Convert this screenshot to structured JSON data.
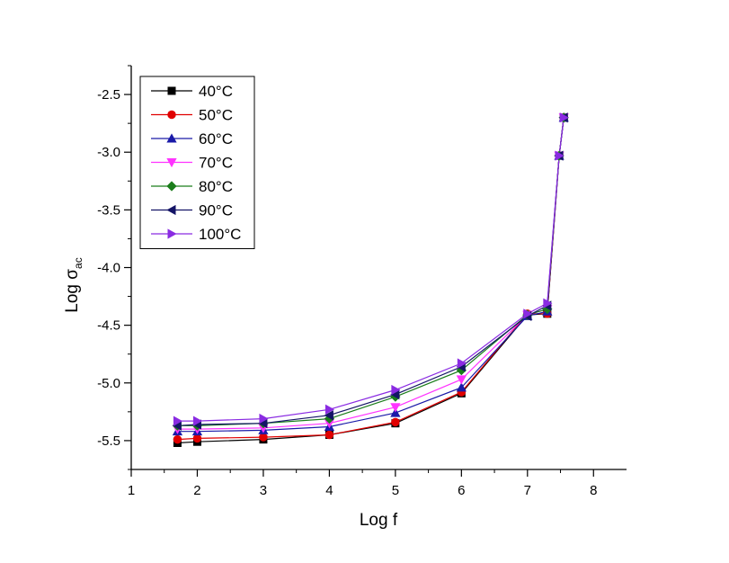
{
  "chart_data": {
    "type": "line",
    "xlabel": "Log f",
    "ylabel_main": "Log σ",
    "ylabel_sub": "ac",
    "xlim": [
      1,
      8.5
    ],
    "ylim": [
      -5.75,
      -2.25
    ],
    "x_ticks": [
      1,
      2,
      3,
      4,
      5,
      6,
      7,
      8
    ],
    "x_tick_labels": [
      "1",
      "2",
      "3",
      "4",
      "5",
      "6",
      "7",
      "8"
    ],
    "y_ticks": [
      -5.5,
      -5.0,
      -4.5,
      -4.0,
      -3.5,
      -3.0,
      -2.5
    ],
    "y_tick_labels": [
      "-5.5",
      "-5.0",
      "-4.5",
      "-4.0",
      "-3.5",
      "-3.0",
      "-2.5"
    ],
    "legend_position": "top-left",
    "x": [
      1.7,
      2.0,
      3.0,
      4.0,
      5.0,
      6.0,
      7.0,
      7.3,
      7.48,
      7.55
    ],
    "series": [
      {
        "name": "40°C",
        "color": "#000000",
        "marker": "square",
        "values": [
          -5.52,
          -5.51,
          -5.49,
          -5.45,
          -5.35,
          -5.09,
          -4.41,
          -4.4,
          -3.03,
          -2.7
        ]
      },
      {
        "name": "50°C",
        "color": "#e00000",
        "marker": "circle",
        "values": [
          -5.49,
          -5.48,
          -5.47,
          -5.45,
          -5.34,
          -5.08,
          -4.4,
          -4.4,
          -3.03,
          -2.7
        ]
      },
      {
        "name": "60°C",
        "color": "#1a1aa8",
        "marker": "triangle-up",
        "values": [
          -5.42,
          -5.42,
          -5.41,
          -5.38,
          -5.26,
          -5.04,
          -4.42,
          -4.38,
          -3.03,
          -2.7
        ]
      },
      {
        "name": "70°C",
        "color": "#ff33ff",
        "marker": "triangle-down",
        "values": [
          -5.4,
          -5.4,
          -5.39,
          -5.35,
          -5.21,
          -4.97,
          -4.41,
          -4.36,
          -3.03,
          -2.7
        ]
      },
      {
        "name": "80°C",
        "color": "#1b7d1b",
        "marker": "diamond",
        "values": [
          -5.37,
          -5.37,
          -5.35,
          -5.31,
          -5.12,
          -4.89,
          -4.41,
          -4.36,
          -3.03,
          -2.7
        ]
      },
      {
        "name": "90°C",
        "color": "#141466",
        "marker": "triangle-left",
        "values": [
          -5.37,
          -5.36,
          -5.35,
          -5.28,
          -5.1,
          -4.86,
          -4.42,
          -4.33,
          -3.03,
          -2.7
        ]
      },
      {
        "name": "100°C",
        "color": "#8a2be2",
        "marker": "triangle-right",
        "values": [
          -5.33,
          -5.33,
          -5.31,
          -5.23,
          -5.06,
          -4.83,
          -4.4,
          -4.31,
          -3.03,
          -2.7
        ]
      }
    ]
  }
}
